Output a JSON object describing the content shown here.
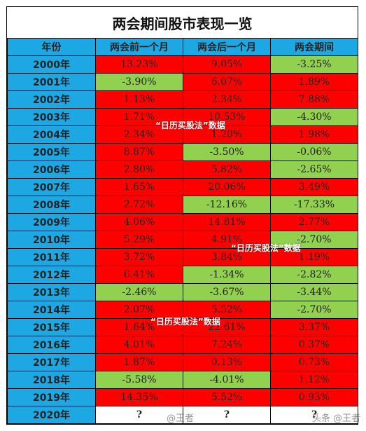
{
  "title": "两会期间股市表现一览",
  "headers": [
    "年份",
    "两会前一个月",
    "两会后一个月",
    "两会期间"
  ],
  "rows": [
    {
      "year": "2000年",
      "cells": [
        {
          "v": "13.23%",
          "c": "red"
        },
        {
          "v": "9.05%",
          "c": "red"
        },
        {
          "v": "-3.25%",
          "c": "green"
        }
      ]
    },
    {
      "year": "2001年",
      "cells": [
        {
          "v": "-3.90%",
          "c": "green"
        },
        {
          "v": "6.07%",
          "c": "red"
        },
        {
          "v": "1.89%",
          "c": "red"
        }
      ]
    },
    {
      "year": "2002年",
      "cells": [
        {
          "v": "1.13%",
          "c": "red"
        },
        {
          "v": "2.34%",
          "c": "red"
        },
        {
          "v": "7.88%",
          "c": "red"
        }
      ]
    },
    {
      "year": "2003年",
      "cells": [
        {
          "v": "1.71%",
          "c": "red"
        },
        {
          "v": "10.53%",
          "c": "red"
        },
        {
          "v": "-4.30%",
          "c": "green"
        }
      ]
    },
    {
      "year": "2004年",
      "cells": [
        {
          "v": "2.34%",
          "c": "red"
        },
        {
          "v": "1.20%",
          "c": "red"
        },
        {
          "v": "1.98%",
          "c": "red"
        }
      ]
    },
    {
      "year": "2005年",
      "cells": [
        {
          "v": "8.87%",
          "c": "red"
        },
        {
          "v": "-3.50%",
          "c": "green"
        },
        {
          "v": "-0.06%",
          "c": "green"
        }
      ]
    },
    {
      "year": "2006年",
      "cells": [
        {
          "v": "2.80%",
          "c": "red"
        },
        {
          "v": "5.82%",
          "c": "red"
        },
        {
          "v": "-2.65%",
          "c": "green"
        }
      ]
    },
    {
      "year": "2007年",
      "cells": [
        {
          "v": "1.65%",
          "c": "red"
        },
        {
          "v": "20.06%",
          "c": "red"
        },
        {
          "v": "3.49%",
          "c": "red"
        }
      ]
    },
    {
      "year": "2008年",
      "cells": [
        {
          "v": "2.72%",
          "c": "red"
        },
        {
          "v": "-12.16%",
          "c": "green"
        },
        {
          "v": "-17.33%",
          "c": "green"
        }
      ]
    },
    {
      "year": "2009年",
      "cells": [
        {
          "v": "4.06%",
          "c": "red"
        },
        {
          "v": "14.81%",
          "c": "red"
        },
        {
          "v": "2.77%",
          "c": "red"
        }
      ]
    },
    {
      "year": "2010年",
      "cells": [
        {
          "v": "5.29%",
          "c": "red"
        },
        {
          "v": "4.91%",
          "c": "red"
        },
        {
          "v": "-2.70%",
          "c": "green"
        }
      ]
    },
    {
      "year": "2011年",
      "cells": [
        {
          "v": "3.72%",
          "c": "red"
        },
        {
          "v": "3.84%",
          "c": "red"
        },
        {
          "v": "1.19%",
          "c": "red"
        }
      ]
    },
    {
      "year": "2012年",
      "cells": [
        {
          "v": "6.41%",
          "c": "red"
        },
        {
          "v": "-1.34%",
          "c": "green"
        },
        {
          "v": "-2.82%",
          "c": "green"
        }
      ]
    },
    {
      "year": "2013年",
      "cells": [
        {
          "v": "-2.46%",
          "c": "green"
        },
        {
          "v": "-3.67%",
          "c": "green"
        },
        {
          "v": "-3.44%",
          "c": "green"
        }
      ]
    },
    {
      "year": "2014年",
      "cells": [
        {
          "v": "2.07%",
          "c": "red"
        },
        {
          "v": "5.52%",
          "c": "red"
        },
        {
          "v": "-2.70%",
          "c": "green"
        }
      ]
    },
    {
      "year": "2015年",
      "cells": [
        {
          "v": "1.64%",
          "c": "red"
        },
        {
          "v": "22.61%",
          "c": "red"
        },
        {
          "v": "3.37%",
          "c": "red"
        }
      ]
    },
    {
      "year": "2016年",
      "cells": [
        {
          "v": "4.01%",
          "c": "red"
        },
        {
          "v": "7.24%",
          "c": "red"
        },
        {
          "v": "0.37%",
          "c": "red"
        }
      ]
    },
    {
      "year": "2017年",
      "cells": [
        {
          "v": "1.87%",
          "c": "red"
        },
        {
          "v": "0.13%",
          "c": "red"
        },
        {
          "v": "0.73%",
          "c": "red"
        }
      ]
    },
    {
      "year": "2018年",
      "cells": [
        {
          "v": "-5.58%",
          "c": "green"
        },
        {
          "v": "-4.01%",
          "c": "green"
        },
        {
          "v": "1.12%",
          "c": "red"
        }
      ]
    },
    {
      "year": "2019年",
      "cells": [
        {
          "v": "14.35%",
          "c": "red"
        },
        {
          "v": "5.52%",
          "c": "red"
        },
        {
          "v": "0.93%",
          "c": "red"
        }
      ]
    },
    {
      "year": "2020年",
      "cells": [
        {
          "v": "?",
          "c": "white"
        },
        {
          "v": "?",
          "c": "white"
        },
        {
          "v": "?",
          "c": "white"
        }
      ]
    }
  ],
  "overlays": {
    "label_1": "“日历买股法”数据",
    "label_2": "“日历买股法”数据",
    "label_3": "“日历买股法”数据"
  },
  "watermarks": {
    "weibo": "@王者",
    "toutiao": "头条 @王者"
  },
  "colors": {
    "header_blue": "#1da8e3",
    "up_red": "#ff0000",
    "down_green": "#92d050"
  }
}
